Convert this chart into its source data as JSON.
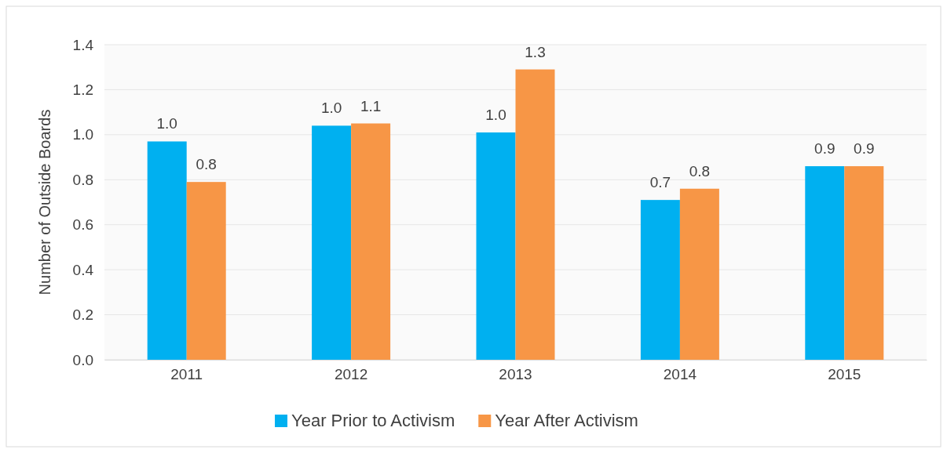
{
  "chart_data": {
    "type": "bar",
    "ylabel": "Number of Outside Boards",
    "categories": [
      "2011",
      "2012",
      "2013",
      "2014",
      "2015"
    ],
    "series": [
      {
        "name": "Year Prior to Activism",
        "color": "#00b0f0",
        "values": [
          0.97,
          1.04,
          1.01,
          0.71,
          0.86
        ],
        "value_labels": [
          "1.0",
          "1.0",
          "1.0",
          "0.7",
          "0.9"
        ]
      },
      {
        "name": "Year After Activism",
        "color": "#f79646",
        "values": [
          0.79,
          1.05,
          1.29,
          0.76,
          0.86
        ],
        "value_labels": [
          "0.8",
          "1.1",
          "1.3",
          "0.8",
          "0.9"
        ]
      }
    ],
    "ylim": [
      0,
      1.4
    ],
    "yticks": [
      {
        "value": 0,
        "label": "0.0"
      },
      {
        "value": 0.2,
        "label": "0.2"
      },
      {
        "value": 0.4,
        "label": "0.4"
      },
      {
        "value": 0.6,
        "label": "0.6"
      },
      {
        "value": 0.8,
        "label": "0.8"
      },
      {
        "value": 1,
        "label": "1.0"
      },
      {
        "value": 1.2,
        "label": "1.2"
      },
      {
        "value": 1.4,
        "label": "1.4"
      }
    ],
    "grid": "y",
    "legend": "bottom"
  }
}
